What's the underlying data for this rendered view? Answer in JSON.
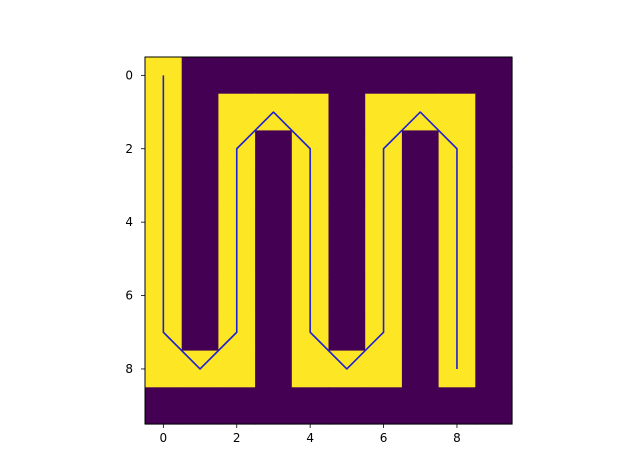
{
  "chart_data": {
    "type": "heatmap",
    "title": "",
    "xlabel": "",
    "ylabel": "",
    "rows": 10,
    "cols": 10,
    "grid": false,
    "xlim": [
      -0.5,
      9.5
    ],
    "ylim": [
      9.5,
      -0.5
    ],
    "x_ticks": [
      0,
      2,
      4,
      6,
      8
    ],
    "y_ticks": [
      0,
      2,
      4,
      6,
      8
    ],
    "x_tick_labels": [
      "0",
      "2",
      "4",
      "6",
      "8"
    ],
    "y_tick_labels": [
      "0",
      "2",
      "4",
      "6",
      "8"
    ],
    "colormap": "viridis",
    "colors": {
      "0": "#440154",
      "1": "#fde725"
    },
    "matrix": [
      [
        1,
        0,
        0,
        0,
        0,
        0,
        0,
        0,
        0,
        0
      ],
      [
        1,
        0,
        1,
        1,
        1,
        0,
        1,
        1,
        1,
        0
      ],
      [
        1,
        0,
        1,
        0,
        1,
        0,
        1,
        0,
        1,
        0
      ],
      [
        1,
        0,
        1,
        0,
        1,
        0,
        1,
        0,
        1,
        0
      ],
      [
        1,
        0,
        1,
        0,
        1,
        0,
        1,
        0,
        1,
        0
      ],
      [
        1,
        0,
        1,
        0,
        1,
        0,
        1,
        0,
        1,
        0
      ],
      [
        1,
        0,
        1,
        0,
        1,
        0,
        1,
        0,
        1,
        0
      ],
      [
        1,
        0,
        1,
        0,
        1,
        0,
        1,
        0,
        1,
        0
      ],
      [
        1,
        1,
        1,
        0,
        1,
        1,
        1,
        0,
        1,
        0
      ],
      [
        0,
        0,
        0,
        0,
        0,
        0,
        0,
        0,
        0,
        0
      ]
    ],
    "overlay": {
      "type": "line",
      "color": "#1f1fd6",
      "points": [
        [
          0,
          0
        ],
        [
          0,
          7
        ],
        [
          1,
          8
        ],
        [
          2,
          7
        ],
        [
          2,
          2
        ],
        [
          3,
          1
        ],
        [
          4,
          2
        ],
        [
          4,
          7
        ],
        [
          5,
          8
        ],
        [
          6,
          7
        ],
        [
          6,
          2
        ],
        [
          7,
          1
        ],
        [
          8,
          2
        ],
        [
          8,
          8
        ]
      ]
    }
  }
}
